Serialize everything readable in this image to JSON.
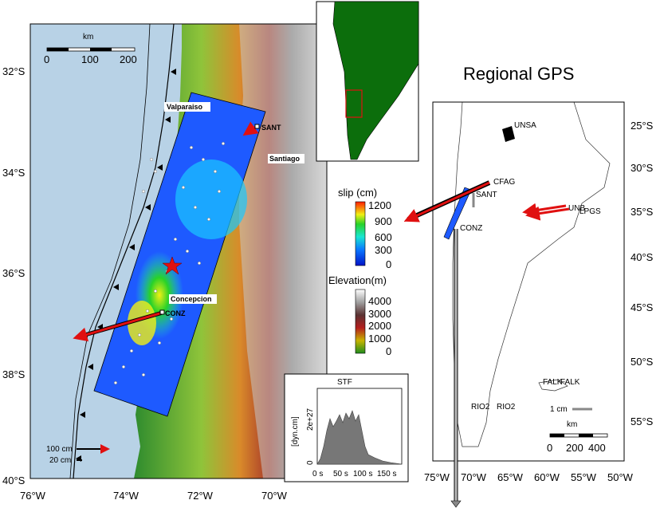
{
  "main_map": {
    "lat_labels": [
      "32°S",
      "34°S",
      "36°S",
      "38°S",
      "40°S"
    ],
    "lon_labels": [
      "76°W",
      "74°W",
      "72°W",
      "70°W"
    ],
    "scale": {
      "unit": "km",
      "ticks": [
        "0",
        "100",
        "200"
      ]
    },
    "places": [
      "Valparaiso",
      "Santiago",
      "Concepcion"
    ],
    "stations": [
      "SANT",
      "CONZ"
    ],
    "vector_legend": [
      "100 cm",
      "20 cm"
    ]
  },
  "slip_scale": {
    "label": "slip (cm)",
    "ticks": [
      "1200",
      "900",
      "600",
      "300",
      "0"
    ]
  },
  "elev_scale": {
    "label": "Elevation(m)",
    "ticks": [
      "4000",
      "3000",
      "2000",
      "1000",
      "0"
    ]
  },
  "stf": {
    "title": "STF",
    "ylabel": "[dyn.cm]",
    "ytick_top": "2e+27",
    "ytick_zero": "0",
    "xticks": [
      "0 s",
      "50 s",
      "100 s",
      "150 s"
    ]
  },
  "regional": {
    "title": "Regional GPS",
    "lat_labels": [
      "25°S",
      "30°S",
      "35°S",
      "40°S",
      "45°S",
      "50°S",
      "55°S"
    ],
    "lon_labels": [
      "75°W",
      "70°W",
      "65°W",
      "60°W",
      "55°W",
      "50°W"
    ],
    "stations": [
      "UNSA",
      "CFAG",
      "SANT",
      "CONZ",
      "UNB",
      "LPGS",
      "FALK",
      "RIO2"
    ],
    "stations_dup": [
      "LPGS",
      "FALK",
      "RIO2"
    ],
    "vector_legend": "1 cm",
    "scale": {
      "unit": "km",
      "ticks": [
        "0",
        "200",
        "400"
      ]
    }
  },
  "colors": {
    "ocean": "#b8d2e6",
    "land_low": "#3c9a3c",
    "mountain": "#d8d8d8",
    "land_green": "#0c6e0c",
    "vector": "#e01010",
    "slip_low": "#0a28ff",
    "slip_high": "#ff3000"
  }
}
